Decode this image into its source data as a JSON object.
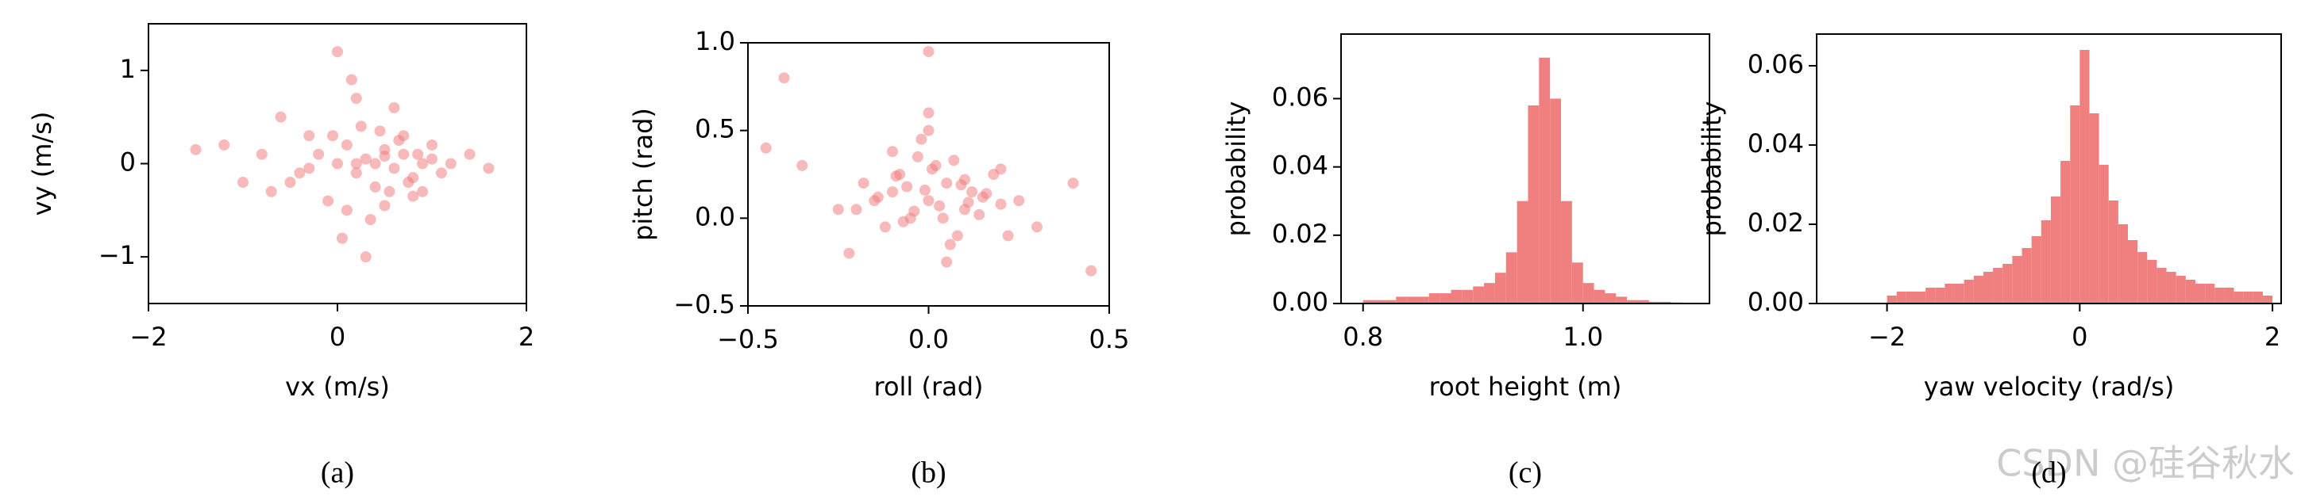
{
  "chart_data": [
    {
      "type": "scatter",
      "xlabel": "vx (m/s)",
      "ylabel": "vy (m/s)",
      "caption": "(a)",
      "color": "#f08080",
      "xlim": [
        -2,
        2
      ],
      "ylim": [
        -1.5,
        1.5
      ],
      "xticks": [
        {
          "value": -2,
          "label": "−2"
        },
        0,
        2
      ],
      "yticks": [
        {
          "value": -1,
          "label": "−1"
        },
        0,
        1
      ],
      "x": [
        -0.8,
        -0.5,
        -0.3,
        -0.1,
        0.0,
        0.1,
        0.2,
        0.3,
        0.4,
        0.5,
        0.6,
        0.7,
        0.8,
        0.9,
        1.0,
        1.1,
        -1.2,
        -0.6,
        0.2,
        0.35,
        0.45,
        0.55,
        0.65,
        0.75,
        0.85,
        0.15,
        0.05,
        -0.2,
        -0.4,
        0.25,
        0.5,
        0.7,
        0.9,
        1.2,
        1.4,
        1.6,
        -1.5,
        -1.0,
        0.0,
        0.3,
        0.6,
        0.1,
        -0.05,
        0.4,
        0.8,
        0.2,
        -0.3,
        0.5,
        1.0,
        -0.7
      ],
      "values": [
        0.1,
        -0.2,
        0.3,
        -0.4,
        0.0,
        0.2,
        -0.1,
        0.05,
        -0.25,
        0.15,
        -0.05,
        0.1,
        -0.15,
        0.0,
        0.05,
        -0.1,
        0.2,
        0.5,
        0.7,
        -0.6,
        0.35,
        -0.3,
        0.25,
        -0.2,
        0.1,
        0.9,
        -0.8,
        0.1,
        -0.1,
        0.4,
        -0.45,
        0.3,
        -0.3,
        0.0,
        0.1,
        -0.05,
        0.15,
        -0.2,
        1.2,
        -1.0,
        0.6,
        -0.5,
        0.3,
        0.0,
        -0.35,
        0.0,
        -0.05,
        0.08,
        0.2,
        -0.3
      ]
    },
    {
      "type": "scatter",
      "xlabel": "roll (rad)",
      "ylabel": "pitch (rad)",
      "caption": "(b)",
      "color": "#f08080",
      "xlim": [
        -0.5,
        0.5
      ],
      "ylim": [
        -0.5,
        1.0
      ],
      "xticks": [
        {
          "value": -0.5,
          "label": "−0.5"
        },
        {
          "value": 0,
          "label": "0.0"
        },
        0.5
      ],
      "yticks": [
        {
          "value": -0.5,
          "label": "−0.5"
        },
        {
          "value": 0,
          "label": "0.0"
        },
        0.5,
        {
          "value": 1,
          "label": "1.0"
        }
      ],
      "x": [
        -0.2,
        -0.15,
        -0.1,
        -0.05,
        0.0,
        0.05,
        0.1,
        0.15,
        0.2,
        -0.12,
        -0.08,
        0.02,
        0.08,
        0.12,
        -0.03,
        0.04,
        -0.18,
        0.18,
        0.25,
        -0.25,
        -0.35,
        0.3,
        0.0,
        -0.02,
        0.06,
        0.1,
        -0.06,
        0.14,
        -0.14,
        0.01,
        -0.4,
        0.4,
        0.45,
        -0.45,
        0.0,
        0.05,
        -0.1,
        0.2,
        0.22,
        -0.22,
        0.03,
        -0.01,
        0.07,
        -0.07,
        0.09,
        0.11,
        -0.09,
        0.16,
        0.0,
        -0.04
      ],
      "values": [
        0.05,
        0.1,
        0.15,
        0.0,
        0.1,
        0.2,
        0.05,
        0.12,
        0.08,
        -0.05,
        0.25,
        0.3,
        -0.1,
        0.15,
        0.35,
        0.0,
        0.2,
        0.25,
        0.1,
        0.05,
        0.3,
        -0.05,
        0.6,
        0.45,
        -0.15,
        0.22,
        0.18,
        0.02,
        0.12,
        0.28,
        0.8,
        0.2,
        -0.3,
        0.4,
        0.95,
        -0.25,
        0.38,
        0.28,
        -0.1,
        -0.2,
        0.07,
        0.16,
        0.33,
        -0.02,
        0.19,
        0.09,
        0.24,
        0.14,
        0.5,
        0.04
      ]
    },
    {
      "type": "histogram",
      "xlabel": "root height (m)",
      "ylabel": "probability",
      "caption": "(c)",
      "color": "#f08080",
      "xlim": [
        0.78,
        1.115
      ],
      "ylim": [
        0,
        0.0789
      ],
      "xticks": [
        0.8,
        {
          "value": 1,
          "label": "1.0"
        }
      ],
      "yticks": [
        {
          "value": 0,
          "label": "0.00"
        },
        {
          "value": 0.02,
          "label": "0.02"
        },
        {
          "value": 0.04,
          "label": "0.04"
        },
        {
          "value": 0.06,
          "label": "0.06"
        }
      ],
      "bins": [
        0.8,
        0.81,
        0.82,
        0.83,
        0.84,
        0.85,
        0.86,
        0.87,
        0.88,
        0.89,
        0.9,
        0.91,
        0.92,
        0.93,
        0.94,
        0.95,
        0.96,
        0.97,
        0.98,
        0.99,
        1.0,
        1.01,
        1.02,
        1.03,
        1.04,
        1.05,
        1.06,
        1.07,
        1.08,
        1.09,
        1.1
      ],
      "values": [
        0.001,
        0.001,
        0.001,
        0.002,
        0.002,
        0.002,
        0.003,
        0.003,
        0.004,
        0.004,
        0.005,
        0.006,
        0.009,
        0.015,
        0.03,
        0.058,
        0.072,
        0.06,
        0.03,
        0.012,
        0.006,
        0.004,
        0.003,
        0.002,
        0.001,
        0.001,
        0.0005,
        0.0005,
        0.0003,
        0.0002
      ]
    },
    {
      "type": "histogram",
      "xlabel": "yaw velocity (rad/s)",
      "ylabel": "probability",
      "caption": "(d)",
      "color": "#f08080",
      "xlim": [
        -2.73,
        2.09
      ],
      "ylim": [
        0,
        0.068
      ],
      "xticks": [
        {
          "value": -2,
          "label": "−2"
        },
        0,
        2
      ],
      "yticks": [
        {
          "value": 0,
          "label": "0.00"
        },
        {
          "value": 0.02,
          "label": "0.02"
        },
        {
          "value": 0.04,
          "label": "0.04"
        },
        {
          "value": 0.06,
          "label": "0.06"
        }
      ],
      "bins": [
        -2,
        -1.9,
        -1.8,
        -1.7,
        -1.6,
        -1.5,
        -1.4,
        -1.3,
        -1.2,
        -1.1,
        -1,
        -0.9,
        -0.8,
        -0.7,
        -0.6,
        -0.5,
        -0.4,
        -0.3,
        -0.2,
        -0.1,
        0,
        0.1,
        0.2,
        0.3,
        0.4,
        0.5,
        0.6,
        0.7,
        0.8,
        0.9,
        1,
        1.1,
        1.2,
        1.3,
        1.4,
        1.5,
        1.6,
        1.7,
        1.8,
        1.9,
        2
      ],
      "values": [
        0.002,
        0.003,
        0.003,
        0.003,
        0.004,
        0.004,
        0.005,
        0.005,
        0.006,
        0.007,
        0.008,
        0.009,
        0.01,
        0.012,
        0.014,
        0.017,
        0.021,
        0.027,
        0.036,
        0.05,
        0.064,
        0.048,
        0.035,
        0.026,
        0.02,
        0.016,
        0.013,
        0.011,
        0.009,
        0.008,
        0.007,
        0.006,
        0.005,
        0.005,
        0.004,
        0.004,
        0.003,
        0.003,
        0.003,
        0.002
      ]
    }
  ],
  "watermark": "CSDN @硅谷秋水"
}
